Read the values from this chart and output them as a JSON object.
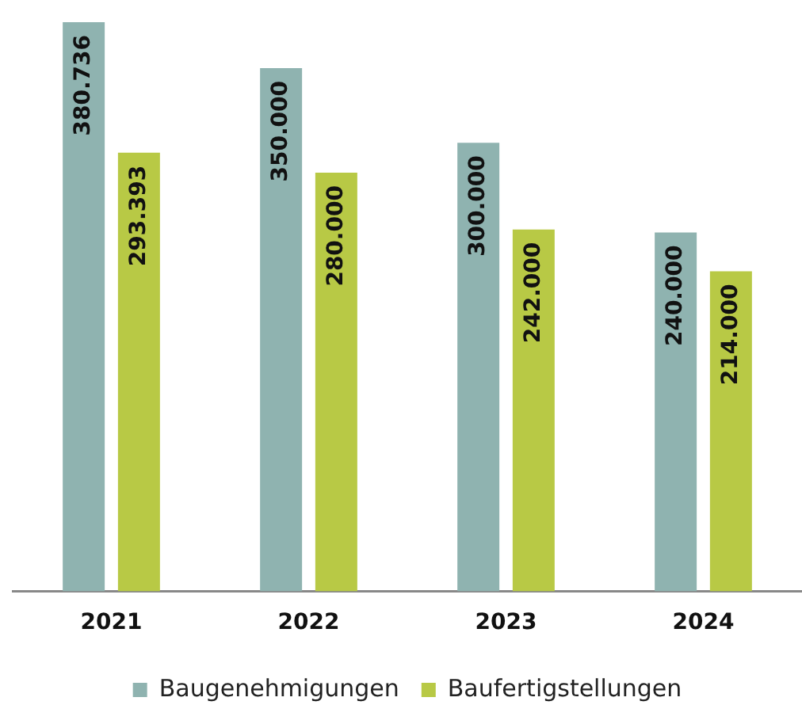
{
  "chart_data": {
    "type": "bar",
    "categories": [
      "2021",
      "2022",
      "2023",
      "2024"
    ],
    "series": [
      {
        "name": "Baugenehmigungen",
        "color": "#8fb3b0",
        "values": [
          380736,
          350000,
          300000,
          240000
        ],
        "value_labels": [
          "380.736",
          "350.000",
          "300.000",
          "240.000"
        ]
      },
      {
        "name": "Baufertigstellungen",
        "color": "#b8c945",
        "values": [
          293393,
          280000,
          242000,
          214000
        ],
        "value_labels": [
          "293.393",
          "280.000",
          "242.000",
          "214.000"
        ]
      }
    ],
    "tick_labels": "x",
    "grid": false,
    "legend": "bottom"
  }
}
